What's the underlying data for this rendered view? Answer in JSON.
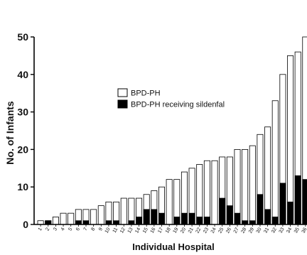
{
  "chart_data": {
    "type": "bar",
    "xlabel": "Individual Hospital",
    "ylabel": "No. of Infants",
    "ylim": [
      0,
      50
    ],
    "yticks": [
      0,
      10,
      20,
      30,
      40,
      50
    ],
    "grid": false,
    "legend_position": "center-left",
    "categories": [
      "1",
      "2",
      "3",
      "4",
      "5",
      "6",
      "7",
      "8",
      "9",
      "10",
      "11",
      "12",
      "13",
      "14",
      "15",
      "16",
      "17",
      "18",
      "19",
      "20",
      "21",
      "22",
      "23",
      "24",
      "25",
      "26",
      "27",
      "28",
      "29",
      "30",
      "31",
      "32",
      "33",
      "34",
      "35",
      "36"
    ],
    "series": [
      {
        "name": "BPD-PH",
        "color": "#ffffff",
        "values": [
          1,
          1,
          2,
          3,
          3,
          4,
          4,
          4,
          5,
          6,
          6,
          7,
          7,
          7,
          8,
          9,
          10,
          12,
          12,
          14,
          15,
          16,
          17,
          17,
          18,
          18,
          20,
          20,
          21,
          24,
          26,
          33,
          40,
          45,
          46,
          50
        ]
      },
      {
        "name": "BPD-PH receiving sildenfal",
        "color": "#000000",
        "values": [
          0,
          1,
          0,
          0,
          0,
          1,
          1,
          0,
          0,
          1,
          1,
          0,
          1,
          2,
          4,
          4,
          3,
          0,
          2,
          3,
          3,
          2,
          2,
          0,
          7,
          5,
          3,
          1,
          1,
          8,
          4,
          2,
          11,
          6,
          13,
          12
        ]
      }
    ]
  }
}
